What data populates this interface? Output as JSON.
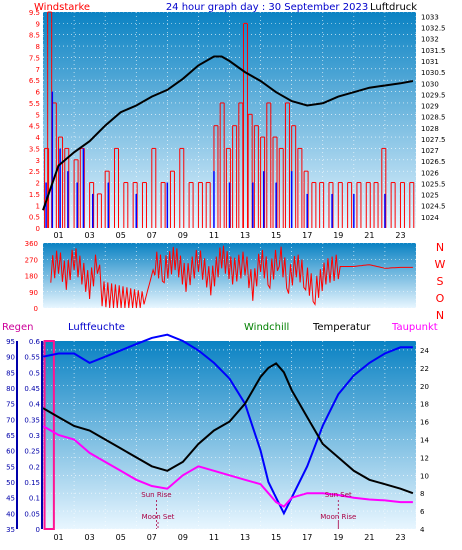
{
  "page": {
    "title": "24 hour graph day : 30 September 2023",
    "background": "#ffffff"
  },
  "colors": {
    "wind": "#ff0000",
    "gust": "#0000ff",
    "pressure": "#000000",
    "direction": "#ff0000",
    "rain_axis": "#0000aa",
    "humidity": "#0000ff",
    "temperature": "#000000",
    "dewpoint": "#ff00ff",
    "windchill": "#008000",
    "rain_bar": "#ff1493",
    "panel_top": "#0a82c3",
    "panel_bottom": "#e8f6ff",
    "grid": "#ffffff"
  },
  "chart_data": [
    {
      "type": "line",
      "name": "wind_pressure",
      "labels": {
        "left": "Windstarke",
        "right": "Luftdruck"
      },
      "x_ticks": [
        "01",
        "03",
        "05",
        "07",
        "09",
        "11",
        "13",
        "15",
        "17",
        "19",
        "21",
        "23"
      ],
      "y_left": {
        "min": 0,
        "max": 9.5,
        "ticks": [
          "0",
          "0.5",
          "1",
          "1.5",
          "2",
          "2.5",
          "3",
          "3.5",
          "4",
          "4.5",
          "5",
          "5.5",
          "6",
          "6.5",
          "7",
          "7.5",
          "8",
          "8.5",
          "9",
          "9.5"
        ]
      },
      "y_right": {
        "min": 1023.5,
        "max": 1033.2,
        "ticks": [
          "1033",
          "1032.5",
          "1032",
          "1031.5",
          "1031",
          "1030.5",
          "1030",
          "1029.5",
          "1029",
          "1028.5",
          "1028",
          "1027.5",
          "1027",
          "1026.5",
          "1026",
          "1025.5",
          "1025",
          "1024.5",
          "1024"
        ]
      },
      "pressure": {
        "x": [
          0,
          1,
          2,
          3,
          4,
          5,
          6,
          7,
          8,
          9,
          10,
          11,
          11.5,
          12,
          13,
          14,
          15,
          16,
          17,
          18,
          19,
          20,
          21,
          22,
          23,
          23.8
        ],
        "y": [
          1024.3,
          1026.3,
          1026.9,
          1027.4,
          1028.1,
          1028.7,
          1029.0,
          1029.4,
          1029.7,
          1030.2,
          1030.8,
          1031.2,
          1031.2,
          1031.0,
          1030.5,
          1030.1,
          1029.6,
          1029.2,
          1029.0,
          1029.1,
          1029.4,
          1029.6,
          1029.8,
          1029.9,
          1030.0,
          1030.1
        ]
      },
      "wind_bars": [
        [
          0.1,
          3.5
        ],
        [
          0.3,
          9.5
        ],
        [
          0.6,
          5.5
        ],
        [
          1.0,
          4.0
        ],
        [
          1.4,
          3.5
        ],
        [
          2.0,
          3.0
        ],
        [
          2.4,
          3.5
        ],
        [
          3.0,
          2.0
        ],
        [
          3.5,
          1.5
        ],
        [
          4.0,
          2.5
        ],
        [
          4.6,
          3.5
        ],
        [
          5.2,
          2.0
        ],
        [
          5.8,
          2.0
        ],
        [
          6.4,
          2.0
        ],
        [
          7.0,
          3.5
        ],
        [
          7.6,
          2.0
        ],
        [
          8.2,
          2.5
        ],
        [
          8.8,
          3.5
        ],
        [
          9.4,
          2.0
        ],
        [
          10.0,
          2.0
        ],
        [
          10.5,
          2.0
        ],
        [
          11.0,
          4.5
        ],
        [
          11.4,
          5.5
        ],
        [
          11.8,
          3.5
        ],
        [
          12.2,
          4.5
        ],
        [
          12.6,
          5.5
        ],
        [
          12.9,
          9.0
        ],
        [
          13.2,
          5.0
        ],
        [
          13.6,
          4.5
        ],
        [
          14.0,
          4.0
        ],
        [
          14.4,
          5.5
        ],
        [
          14.8,
          4.0
        ],
        [
          15.2,
          3.5
        ],
        [
          15.6,
          5.5
        ],
        [
          16.0,
          4.5
        ],
        [
          16.4,
          3.5
        ],
        [
          16.8,
          2.5
        ],
        [
          17.3,
          2.0
        ],
        [
          17.8,
          2.0
        ],
        [
          18.4,
          2.0
        ],
        [
          19.0,
          2.0
        ],
        [
          19.6,
          2.0
        ],
        [
          20.2,
          2.0
        ],
        [
          20.8,
          2.0
        ],
        [
          21.3,
          2.0
        ],
        [
          21.8,
          3.5
        ],
        [
          22.4,
          2.0
        ],
        [
          23.0,
          2.0
        ],
        [
          23.6,
          2.0
        ]
      ],
      "gust_bars": [
        [
          0.2,
          2.0
        ],
        [
          0.6,
          6.0
        ],
        [
          1.1,
          3.5
        ],
        [
          1.6,
          2.5
        ],
        [
          2.2,
          2.0
        ],
        [
          2.6,
          3.5
        ],
        [
          3.2,
          1.5
        ],
        [
          4.2,
          2.0
        ],
        [
          6.0,
          1.5
        ],
        [
          8.0,
          2.0
        ],
        [
          11.0,
          2.5
        ],
        [
          12.0,
          2.0
        ],
        [
          13.5,
          2.0
        ],
        [
          14.2,
          2.5
        ],
        [
          15.0,
          2.0
        ],
        [
          16.0,
          2.5
        ],
        [
          17.0,
          1.5
        ],
        [
          18.6,
          1.5
        ],
        [
          20.0,
          1.5
        ],
        [
          22.0,
          1.5
        ]
      ]
    },
    {
      "type": "line",
      "name": "wind_direction",
      "labels": {
        "right": [
          "N",
          "W",
          "S",
          "O",
          "N"
        ]
      },
      "y": {
        "min": 0,
        "max": 360,
        "ticks": [
          "360",
          "270",
          "180",
          "90",
          "0"
        ]
      },
      "segments": [
        [
          0.0,
          24.0
        ],
        [
          1.0,
          18.0
        ],
        [
          1.5,
          8.0
        ],
        [
          2.5,
          18.0
        ],
        [
          3.5,
          15.0
        ],
        [
          4.0,
          1.0
        ],
        [
          6.0,
          1.0
        ],
        [
          7.0,
          1.0
        ],
        [
          7.3,
          20.0
        ],
        [
          8.0,
          18.0
        ],
        [
          9.0,
          23.0
        ],
        [
          10.0,
          20.0
        ],
        [
          11.0,
          18.0
        ],
        [
          12.0,
          22.0
        ],
        [
          13.0,
          14.0
        ],
        [
          14.0,
          17.0
        ],
        [
          15.0,
          12.0
        ],
        [
          16.0,
          15.0
        ],
        [
          16.8,
          8.0
        ],
        [
          17.3,
          1.0
        ],
        [
          18.0,
          2.0
        ],
        [
          18.7,
          19.0
        ],
        [
          19.5,
          18.0
        ],
        [
          20.0,
          20.0
        ],
        [
          21.0,
          22.0
        ],
        [
          22.0,
          21.0
        ],
        [
          23.0,
          21.0
        ],
        [
          24.0,
          22.0
        ]
      ],
      "dir_values": [
        [
          0.5,
          210
        ],
        [
          1.0,
          260
        ],
        [
          1.5,
          170
        ],
        [
          2.0,
          280
        ],
        [
          2.5,
          200
        ],
        [
          3.0,
          120
        ],
        [
          3.5,
          260
        ],
        [
          3.8,
          80
        ],
        [
          6.5,
          20
        ],
        [
          7.2,
          250
        ],
        [
          7.8,
          210
        ],
        [
          8.5,
          280
        ],
        [
          9.2,
          160
        ],
        [
          10.0,
          270
        ],
        [
          10.8,
          140
        ],
        [
          11.5,
          290
        ],
        [
          12.2,
          200
        ],
        [
          13.0,
          250
        ],
        [
          13.5,
          110
        ],
        [
          14.0,
          270
        ],
        [
          14.6,
          180
        ],
        [
          15.2,
          300
        ],
        [
          15.8,
          150
        ],
        [
          16.3,
          240
        ],
        [
          16.9,
          170
        ],
        [
          17.5,
          90
        ],
        [
          18.2,
          200
        ],
        [
          19.0,
          230
        ],
        [
          20.0,
          230
        ],
        [
          21.0,
          240
        ],
        [
          22.0,
          220
        ],
        [
          23.0,
          225
        ],
        [
          23.8,
          225
        ]
      ]
    },
    {
      "type": "line",
      "name": "climate",
      "labels": {
        "rain": "Regen",
        "humidity": "Luftfeuchte",
        "windchill": "Windchill",
        "temperature": "Temperatur",
        "dewpoint": "Taupunkt"
      },
      "x_ticks": [
        "01",
        "03",
        "05",
        "07",
        "09",
        "11",
        "13",
        "15",
        "17",
        "19",
        "21",
        "23"
      ],
      "y_humidity": {
        "min": 35,
        "max": 95,
        "ticks": [
          "95",
          "90",
          "85",
          "80",
          "75",
          "70",
          "65",
          "60",
          "55",
          "50",
          "45",
          "40",
          "35"
        ]
      },
      "y_rain": {
        "min": 0,
        "max": 0.6,
        "ticks": [
          "0.6",
          "0.55",
          "0.5",
          "0.45",
          "0.4",
          "0.35",
          "0.3",
          "0.25",
          "0.2",
          "0.15",
          "0.1",
          "0.05",
          "0"
        ]
      },
      "y_temp": {
        "min": 4,
        "max": 25,
        "ticks": [
          "24",
          "22",
          "20",
          "18",
          "16",
          "14",
          "12",
          "10",
          "8",
          "6",
          "4"
        ]
      },
      "humidity": {
        "x": [
          0,
          1,
          2,
          3,
          4,
          5,
          6,
          7,
          8,
          9,
          10,
          11,
          12,
          13,
          14,
          14.5,
          15,
          15.5,
          16,
          17,
          18,
          19,
          20,
          21,
          22,
          23,
          23.8
        ],
        "y": [
          90,
          91,
          91,
          88,
          90,
          92,
          94,
          96,
          97,
          95,
          92,
          88,
          83,
          75,
          60,
          50,
          45,
          40,
          45,
          55,
          68,
          78,
          84,
          88,
          91,
          93,
          93
        ]
      },
      "temperature": {
        "x": [
          0,
          1,
          2,
          3,
          4,
          5,
          6,
          7,
          8,
          9,
          10,
          11,
          12,
          13,
          14,
          14.5,
          15,
          15.5,
          16,
          17,
          18,
          19,
          20,
          21,
          22,
          23,
          23.8
        ],
        "y": [
          17.5,
          16.5,
          15.5,
          15.0,
          14.0,
          13.0,
          12.0,
          11.0,
          10.5,
          11.5,
          13.5,
          15.0,
          16.0,
          18.0,
          21.0,
          22.0,
          22.5,
          21.5,
          19.5,
          16.5,
          13.5,
          12.0,
          10.5,
          9.5,
          9.0,
          8.5,
          8.0
        ]
      },
      "dewpoint": {
        "x": [
          0,
          1,
          2,
          3,
          4,
          5,
          6,
          7,
          8,
          9,
          10,
          11,
          12,
          13,
          14,
          14.5,
          15,
          15.5,
          16,
          17,
          18,
          19,
          20,
          21,
          22,
          23,
          23.8
        ],
        "y": [
          15.5,
          14.5,
          14.0,
          12.5,
          11.5,
          10.5,
          9.5,
          8.8,
          8.5,
          10.0,
          11.0,
          10.5,
          10.0,
          9.5,
          9.0,
          8.0,
          7.0,
          6.5,
          7.5,
          8.0,
          8.0,
          7.8,
          7.5,
          7.3,
          7.2,
          7.0,
          7.0
        ]
      },
      "rain": {
        "x": [
          0.1,
          0.7
        ],
        "value": 0.6
      },
      "events": [
        {
          "label": "Sun Rise",
          "hour": 7.3,
          "pos": "upper"
        },
        {
          "label": "Moon Set",
          "hour": 7.4,
          "pos": "lower"
        },
        {
          "label": "Sun Set",
          "hour": 19.0,
          "pos": "upper"
        },
        {
          "label": "Moon Rise",
          "hour": 19.0,
          "pos": "lower"
        }
      ]
    }
  ]
}
